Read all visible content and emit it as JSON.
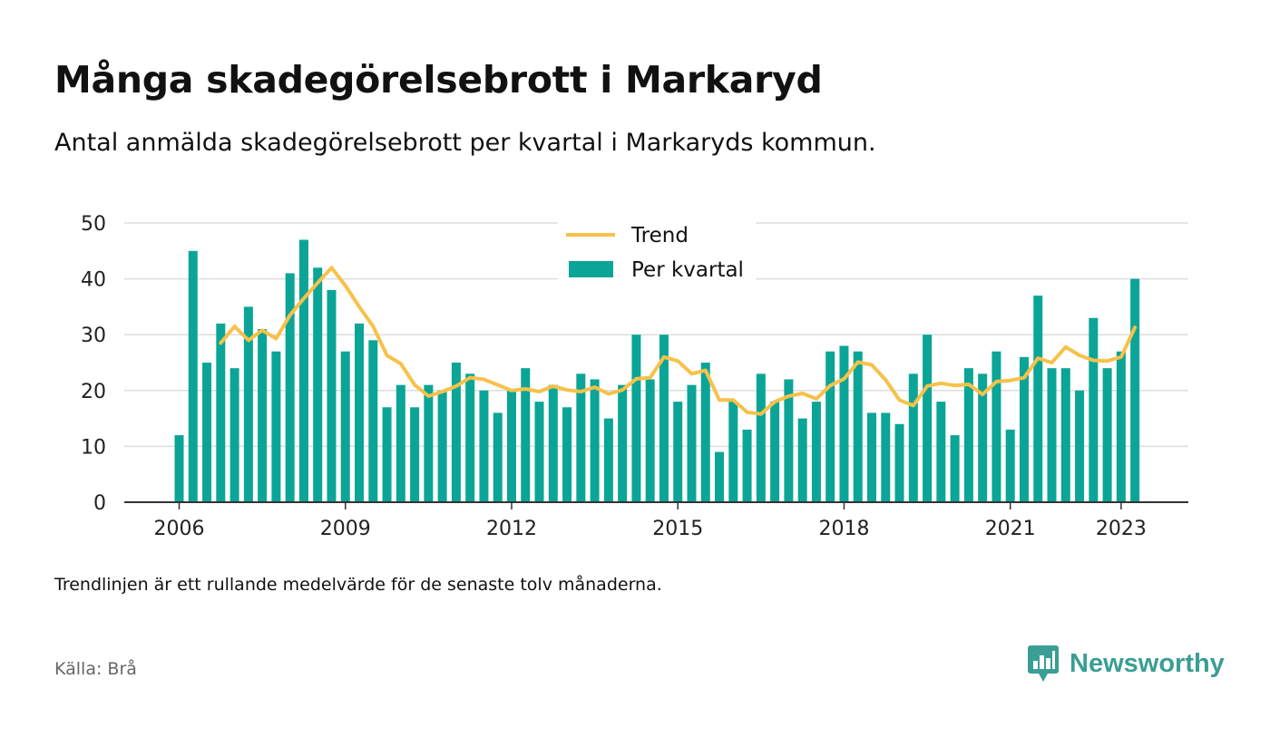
{
  "title": "Många skadegörelsebrott i Markaryd",
  "subtitle": "Antal anmälda skadegörelsebrott per kvartal i Markaryds kommun.",
  "footnote": "Trendlinjen är ett rullande medelvärde för de senaste tolv månaderna.",
  "source": "Källa: Brå",
  "brand": {
    "name": "Newsworthy",
    "icon": "newsworthy-logo-icon"
  },
  "colors": {
    "bars": "#0aa596",
    "trend": "#f7c14a",
    "grid": "#dddddd",
    "axis": "#333333",
    "brand": "#3a9e94"
  },
  "chart_data": {
    "type": "bar",
    "xlabel": "",
    "ylabel": "",
    "ylim": [
      0,
      50
    ],
    "yticks": [
      0,
      10,
      20,
      30,
      40,
      50
    ],
    "xticks": [
      "2006",
      "2009",
      "2012",
      "2015",
      "2018",
      "2021",
      "2023"
    ],
    "grid": true,
    "legend_position": "top-center",
    "categories": [
      "2006 Q1",
      "2006 Q2",
      "2006 Q3",
      "2006 Q4",
      "2007 Q1",
      "2007 Q2",
      "2007 Q3",
      "2007 Q4",
      "2008 Q1",
      "2008 Q2",
      "2008 Q3",
      "2008 Q4",
      "2009 Q1",
      "2009 Q2",
      "2009 Q3",
      "2009 Q4",
      "2010 Q1",
      "2010 Q2",
      "2010 Q3",
      "2010 Q4",
      "2011 Q1",
      "2011 Q2",
      "2011 Q3",
      "2011 Q4",
      "2012 Q1",
      "2012 Q2",
      "2012 Q3",
      "2012 Q4",
      "2013 Q1",
      "2013 Q2",
      "2013 Q3",
      "2013 Q4",
      "2014 Q1",
      "2014 Q2",
      "2014 Q3",
      "2014 Q4",
      "2015 Q1",
      "2015 Q2",
      "2015 Q3",
      "2015 Q4",
      "2016 Q1",
      "2016 Q2",
      "2016 Q3",
      "2016 Q4",
      "2017 Q1",
      "2017 Q2",
      "2017 Q3",
      "2017 Q4",
      "2018 Q1",
      "2018 Q2",
      "2018 Q3",
      "2018 Q4",
      "2019 Q1",
      "2019 Q2",
      "2019 Q3",
      "2019 Q4",
      "2020 Q1",
      "2020 Q2",
      "2020 Q3",
      "2020 Q4",
      "2021 Q1",
      "2021 Q2",
      "2021 Q3",
      "2021 Q4",
      "2022 Q1",
      "2022 Q2",
      "2022 Q3",
      "2022 Q4",
      "2023 Q1",
      "2023 Q2"
    ],
    "series": [
      {
        "name": "Per kvartal",
        "type": "bar",
        "values": [
          12,
          45,
          25,
          32,
          24,
          35,
          31,
          27,
          41,
          47,
          42,
          38,
          27,
          32,
          29,
          17,
          21,
          17,
          21,
          20,
          25,
          23,
          20,
          16,
          20,
          24,
          18,
          21,
          17,
          23,
          22,
          15,
          21,
          30,
          22,
          30,
          18,
          21,
          25,
          9,
          18,
          13,
          23,
          18,
          22,
          15,
          18,
          27,
          28,
          27,
          16,
          16,
          14,
          23,
          30,
          18,
          12,
          24,
          23,
          27,
          13,
          26,
          37,
          24,
          24,
          20,
          33,
          24,
          27,
          40
        ]
      },
      {
        "name": "Trend",
        "type": "line",
        "values": [
          null,
          null,
          null,
          28.5,
          31.5,
          29,
          30.8,
          29.3,
          33.5,
          36.5,
          39.3,
          42,
          38.8,
          35,
          31.5,
          26.3,
          24.8,
          21,
          19,
          19.8,
          20.8,
          22.3,
          22,
          21,
          20,
          20.3,
          19.8,
          20.8,
          20.1,
          19.8,
          20.6,
          19.4,
          20.1,
          22.1,
          22.3,
          26,
          25.3,
          23,
          23.6,
          18.3,
          18.3,
          16.1,
          15.8,
          18,
          19,
          19.5,
          18.5,
          20.9,
          22.1,
          25.1,
          24.6,
          21.9,
          18.3,
          17.3,
          20.8,
          21.3,
          20.9,
          21.1,
          19.3,
          21.6,
          21.8,
          22.3,
          25.8,
          25,
          27.8,
          26.3,
          25.4,
          25.3,
          26,
          31.3
        ]
      }
    ]
  }
}
